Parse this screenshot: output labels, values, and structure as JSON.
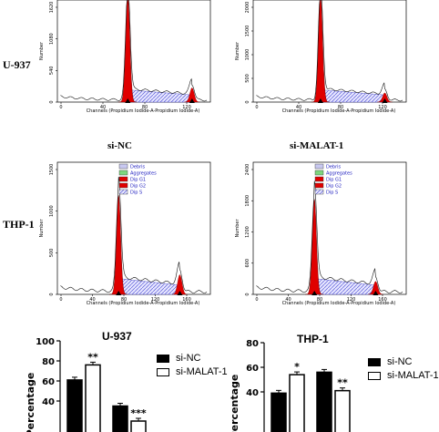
{
  "row_labels": {
    "u937": "U-937",
    "thp1": "THP-1"
  },
  "col_labels": {
    "si_nc": "si-NC",
    "si_malat": "si-MALAT-1"
  },
  "histogram": {
    "xlabel": "Channels (Propidium Iodide-A-Propidium Iodide-A)",
    "ylabel": "Number",
    "panels": {
      "u937_nc": {
        "yticks": [
          "1620",
          "1080",
          "540",
          "0"
        ],
        "xticks": [
          "0",
          "40",
          "80",
          "120"
        ]
      },
      "u937_malat": {
        "yticks": [
          "2000",
          "1500",
          "1000",
          "500",
          "0"
        ],
        "xticks": [
          "0",
          "40",
          "80",
          "120"
        ]
      },
      "thp1_nc": {
        "yticks": [
          "1500",
          "1000",
          "500",
          "0"
        ],
        "xticks": [
          "0",
          "40",
          "80",
          "120",
          "160"
        ]
      },
      "thp1_malat": {
        "yticks": [
          "2400",
          "1800",
          "1200",
          "600",
          "0"
        ],
        "xticks": [
          "0",
          "40",
          "80",
          "120",
          "160"
        ]
      }
    },
    "legend": [
      "Debris",
      "Aggregates",
      "Dip G1",
      "Dip G2",
      "Dip S"
    ],
    "legend_colors": [
      "#c8c8f0",
      "#7ed67e",
      "#e00000",
      "#e00000",
      "#ffffff"
    ]
  },
  "bar_legend": {
    "si_nc": "si-NC",
    "si_malat": "si-MALAT-1"
  },
  "chart_data": [
    {
      "type": "bar",
      "title": "U-937",
      "ylabel": "Percentage",
      "ylim": [
        0,
        100
      ],
      "yticks": [
        40,
        60,
        80,
        100
      ],
      "series": [
        {
          "name": "si-NC",
          "values": [
            61,
            35
          ]
        },
        {
          "name": "si-MALAT-1",
          "values": [
            76,
            20
          ]
        }
      ],
      "annotations": [
        "**",
        "***"
      ]
    },
    {
      "type": "bar",
      "title": "THP-1",
      "ylabel": "Percentage",
      "ylim": [
        0,
        80
      ],
      "yticks": [
        40,
        60,
        80
      ],
      "series": [
        {
          "name": "si-NC",
          "values": [
            39,
            56
          ]
        },
        {
          "name": "si-MALAT-1",
          "values": [
            54,
            41
          ]
        }
      ],
      "annotations": [
        "*",
        "**"
      ]
    }
  ]
}
